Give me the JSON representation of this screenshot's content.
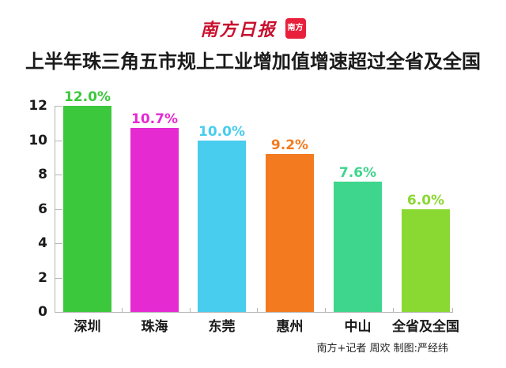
{
  "header": {
    "brand": "南方日报",
    "app_badge": "南方+"
  },
  "chart_data": {
    "type": "bar",
    "title": "上半年珠三角五市规上工业增加值增速超过全省及全国",
    "xlabel": "",
    "ylabel": "",
    "categories": [
      "深圳",
      "珠海",
      "东莞",
      "惠州",
      "中山",
      "全省及全国"
    ],
    "values": [
      12.0,
      10.7,
      10.0,
      9.2,
      7.6,
      6.0
    ],
    "value_labels": [
      "12.0%",
      "10.7%",
      "10.0%",
      "9.2%",
      "7.6%",
      "6.0%"
    ],
    "colors": [
      "#3cc83c",
      "#e62ad2",
      "#48cdee",
      "#f47a20",
      "#3dd68c",
      "#8ad832"
    ],
    "yticks": [
      0,
      2,
      4,
      6,
      8,
      10,
      12
    ],
    "ylim": [
      0,
      12
    ],
    "grid": false,
    "legend": null
  },
  "footer": {
    "credit": "南方+记者 周欢  制图:严经纬"
  }
}
